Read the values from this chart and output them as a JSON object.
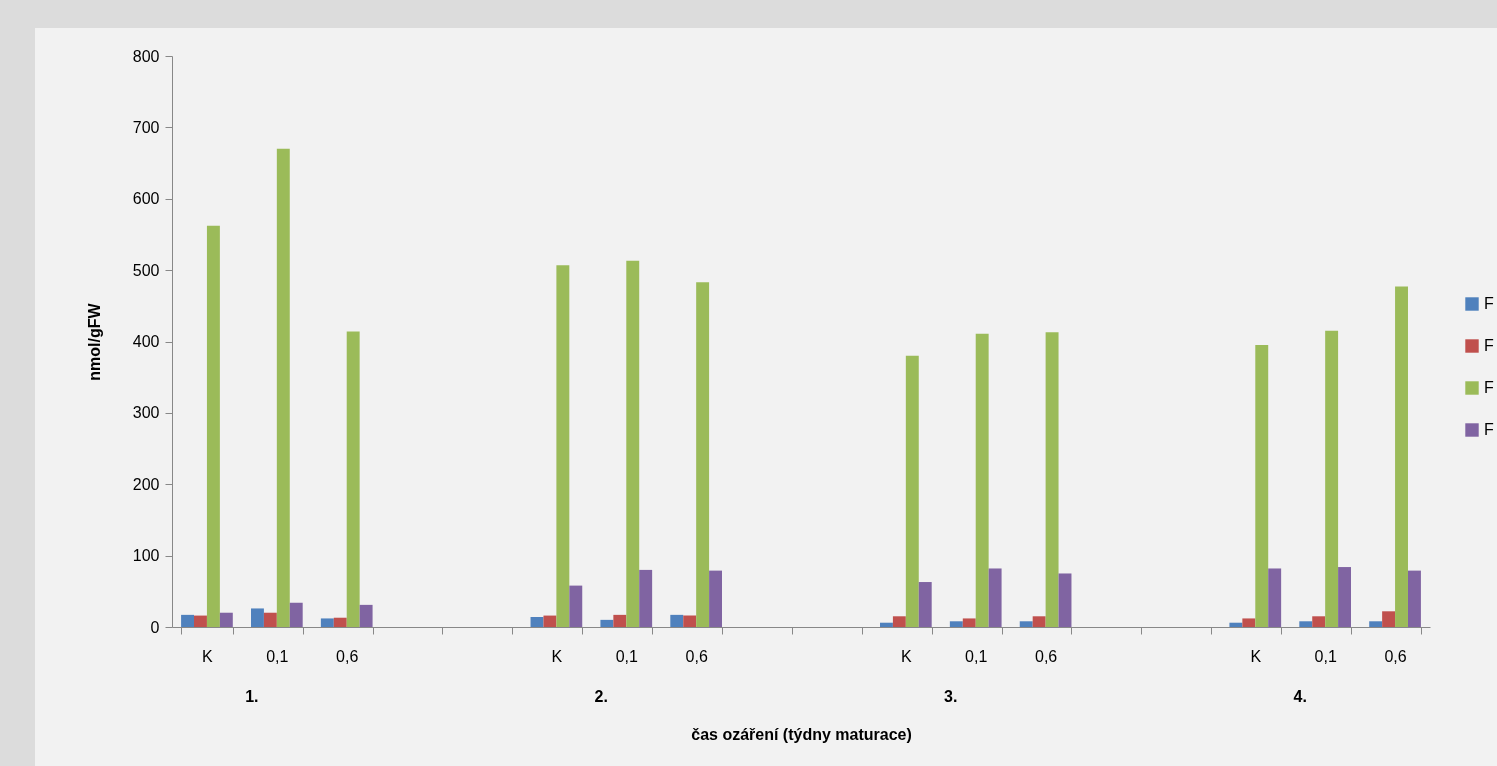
{
  "chart_data": {
    "type": "bar",
    "xlabel": "čas ozáření (týdny maturace)",
    "ylabel": "nmol/gFW",
    "categories": [
      "K",
      "0,1",
      "0,6",
      null,
      null,
      "K",
      "0,1",
      "0,6",
      null,
      null,
      "K",
      "0,1",
      "0,6",
      null,
      null,
      "K",
      "0,1",
      "0,6"
    ],
    "series": [
      {
        "name": "F",
        "color": "#4f81bd",
        "values": [
          17,
          26,
          12,
          null,
          null,
          14,
          10,
          17,
          null,
          null,
          6,
          8,
          8,
          null,
          null,
          6,
          8,
          8
        ]
      },
      {
        "name": "F",
        "color": "#c0504d",
        "values": [
          16,
          20,
          13,
          null,
          null,
          16,
          17,
          16,
          null,
          null,
          15,
          12,
          15,
          null,
          null,
          12,
          15,
          22
        ]
      },
      {
        "name": "F",
        "color": "#9bbb59",
        "values": [
          562,
          670,
          414,
          null,
          null,
          507,
          513,
          483,
          null,
          null,
          380,
          411,
          413,
          null,
          null,
          395,
          415,
          477
        ]
      },
      {
        "name": "F",
        "color": "#8064a2",
        "values": [
          20,
          34,
          31,
          null,
          null,
          58,
          80,
          79,
          null,
          null,
          63,
          82,
          75,
          null,
          null,
          82,
          84,
          79
        ]
      }
    ],
    "annotations": [
      "1.",
      "2.",
      "3.",
      "4."
    ],
    "ylim": [
      0,
      800
    ],
    "yticks": [
      0,
      100,
      200,
      300,
      400,
      500,
      600,
      700,
      800
    ],
    "grid": false,
    "legend": "right"
  }
}
